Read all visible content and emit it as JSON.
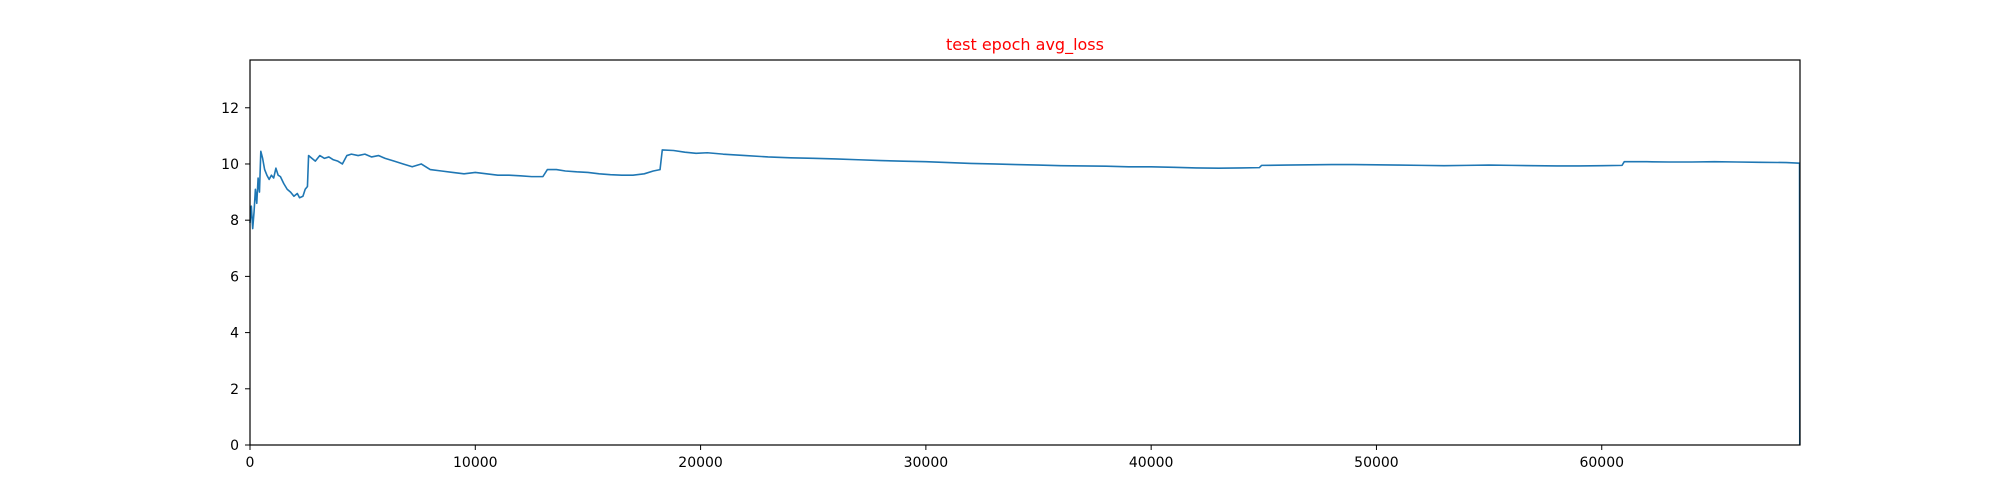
{
  "chart_data": {
    "type": "line",
    "title": "test epoch avg_loss",
    "xlabel": "",
    "ylabel": "",
    "xlim": [
      0,
      68800
    ],
    "ylim": [
      0,
      13.7
    ],
    "grid": false,
    "x_ticks": [
      0,
      10000,
      20000,
      30000,
      40000,
      50000,
      60000
    ],
    "x_tick_labels": [
      "0",
      "10000",
      "20000",
      "30000",
      "40000",
      "50000",
      "60000"
    ],
    "y_ticks": [
      0,
      2,
      4,
      6,
      8,
      10,
      12
    ],
    "y_tick_labels": [
      "0",
      "2",
      "4",
      "6",
      "8",
      "10",
      "12"
    ],
    "colors": {
      "title": "#ff0000",
      "line": "#1f77b4",
      "axes": "#000000"
    },
    "series": [
      {
        "values_xy": [
          [
            0,
            7.9
          ],
          [
            60,
            8.5
          ],
          [
            120,
            7.7
          ],
          [
            180,
            8.3
          ],
          [
            240,
            9.1
          ],
          [
            300,
            8.6
          ],
          [
            360,
            9.5
          ],
          [
            420,
            9.0
          ],
          [
            480,
            10.45
          ],
          [
            560,
            10.2
          ],
          [
            650,
            9.8
          ],
          [
            750,
            9.6
          ],
          [
            850,
            9.45
          ],
          [
            950,
            9.6
          ],
          [
            1050,
            9.5
          ],
          [
            1150,
            9.85
          ],
          [
            1250,
            9.6
          ],
          [
            1350,
            9.55
          ],
          [
            1500,
            9.3
          ],
          [
            1650,
            9.1
          ],
          [
            1800,
            9.0
          ],
          [
            1950,
            8.85
          ],
          [
            2100,
            8.95
          ],
          [
            2200,
            8.8
          ],
          [
            2350,
            8.85
          ],
          [
            2450,
            9.1
          ],
          [
            2550,
            9.2
          ],
          [
            2600,
            10.3
          ],
          [
            2750,
            10.2
          ],
          [
            2900,
            10.1
          ],
          [
            3100,
            10.3
          ],
          [
            3300,
            10.2
          ],
          [
            3500,
            10.25
          ],
          [
            3700,
            10.15
          ],
          [
            3900,
            10.1
          ],
          [
            4100,
            10.0
          ],
          [
            4300,
            10.3
          ],
          [
            4500,
            10.35
          ],
          [
            4800,
            10.3
          ],
          [
            5100,
            10.35
          ],
          [
            5400,
            10.25
          ],
          [
            5700,
            10.3
          ],
          [
            6000,
            10.2
          ],
          [
            6400,
            10.1
          ],
          [
            6800,
            10.0
          ],
          [
            7200,
            9.9
          ],
          [
            7600,
            10.0
          ],
          [
            8000,
            9.8
          ],
          [
            8500,
            9.75
          ],
          [
            9000,
            9.7
          ],
          [
            9500,
            9.65
          ],
          [
            10000,
            9.7
          ],
          [
            10500,
            9.65
          ],
          [
            11000,
            9.6
          ],
          [
            11500,
            9.6
          ],
          [
            12000,
            9.58
          ],
          [
            12500,
            9.55
          ],
          [
            13000,
            9.55
          ],
          [
            13200,
            9.8
          ],
          [
            13600,
            9.8
          ],
          [
            14000,
            9.75
          ],
          [
            14500,
            9.72
          ],
          [
            15000,
            9.7
          ],
          [
            15500,
            9.65
          ],
          [
            16000,
            9.62
          ],
          [
            16500,
            9.6
          ],
          [
            17000,
            9.6
          ],
          [
            17500,
            9.65
          ],
          [
            17900,
            9.75
          ],
          [
            18200,
            9.8
          ],
          [
            18300,
            10.5
          ],
          [
            18800,
            10.48
          ],
          [
            19300,
            10.42
          ],
          [
            19800,
            10.38
          ],
          [
            20300,
            10.4
          ],
          [
            21000,
            10.35
          ],
          [
            22000,
            10.3
          ],
          [
            23000,
            10.25
          ],
          [
            24000,
            10.22
          ],
          [
            25000,
            10.2
          ],
          [
            26000,
            10.18
          ],
          [
            27000,
            10.15
          ],
          [
            28000,
            10.12
          ],
          [
            29000,
            10.1
          ],
          [
            30000,
            10.08
          ],
          [
            31000,
            10.05
          ],
          [
            32000,
            10.02
          ],
          [
            33000,
            10.0
          ],
          [
            34000,
            9.98
          ],
          [
            35000,
            9.96
          ],
          [
            36000,
            9.94
          ],
          [
            37000,
            9.93
          ],
          [
            38000,
            9.92
          ],
          [
            39000,
            9.9
          ],
          [
            40000,
            9.9
          ],
          [
            41000,
            9.88
          ],
          [
            42000,
            9.86
          ],
          [
            43000,
            9.85
          ],
          [
            44000,
            9.86
          ],
          [
            44800,
            9.87
          ],
          [
            44900,
            9.95
          ],
          [
            46000,
            9.96
          ],
          [
            47000,
            9.97
          ],
          [
            48000,
            9.98
          ],
          [
            49000,
            9.98
          ],
          [
            50000,
            9.97
          ],
          [
            51000,
            9.96
          ],
          [
            52000,
            9.95
          ],
          [
            53000,
            9.94
          ],
          [
            54000,
            9.95
          ],
          [
            55000,
            9.96
          ],
          [
            56000,
            9.95
          ],
          [
            57000,
            9.94
          ],
          [
            58000,
            9.93
          ],
          [
            59000,
            9.93
          ],
          [
            60000,
            9.94
          ],
          [
            60900,
            9.95
          ],
          [
            61000,
            10.08
          ],
          [
            62000,
            10.08
          ],
          [
            63000,
            10.07
          ],
          [
            64000,
            10.07
          ],
          [
            65000,
            10.08
          ],
          [
            66000,
            10.07
          ],
          [
            67000,
            10.06
          ],
          [
            68200,
            10.05
          ],
          [
            68780,
            10.03
          ],
          [
            68790,
            0.0
          ]
        ]
      }
    ]
  }
}
